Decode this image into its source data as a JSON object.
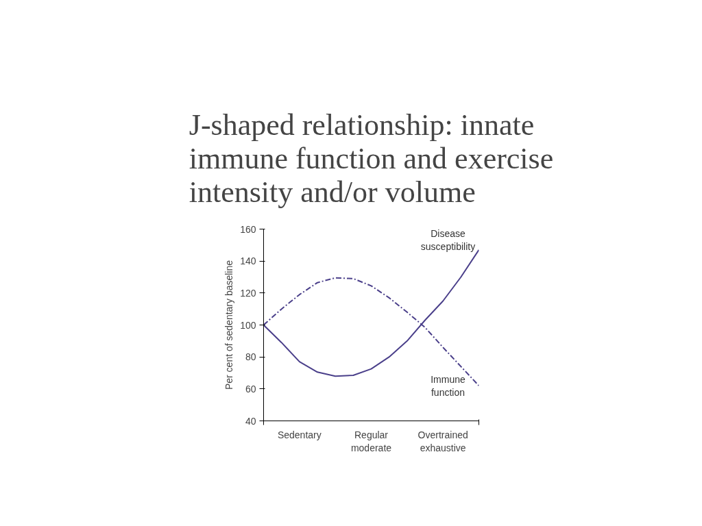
{
  "chart_data": {
    "type": "line",
    "title": "J-shaped relationship: innate\nimmune function and exercise\nintensity and/or volume",
    "ylabel": "Per cent of sedentary baseline",
    "categories": [
      null,
      null,
      "Sedentary",
      null,
      null,
      null,
      "Regular\nmoderate",
      null,
      null,
      null,
      "Overtrained\nexhaustive",
      null,
      null
    ],
    "ylim": [
      40,
      160
    ],
    "yticks": [
      40,
      60,
      80,
      100,
      120,
      140,
      160
    ],
    "grid": false,
    "marker": "none",
    "series": [
      {
        "name": "Disease\nsusceptibility",
        "color": "#4a3f8a",
        "line_style": "solid",
        "values": [
          100,
          89,
          77,
          70.5,
          68,
          68.5,
          72.5,
          80,
          90,
          103,
          115,
          130,
          147
        ]
      },
      {
        "name": "Immune\nfunction",
        "color": "#4a3f8a",
        "line_style": "dashed",
        "values": [
          100,
          110,
          119,
          126.5,
          129.5,
          129,
          124.5,
          117,
          108,
          98.5,
          86,
          74,
          62
        ]
      }
    ]
  }
}
